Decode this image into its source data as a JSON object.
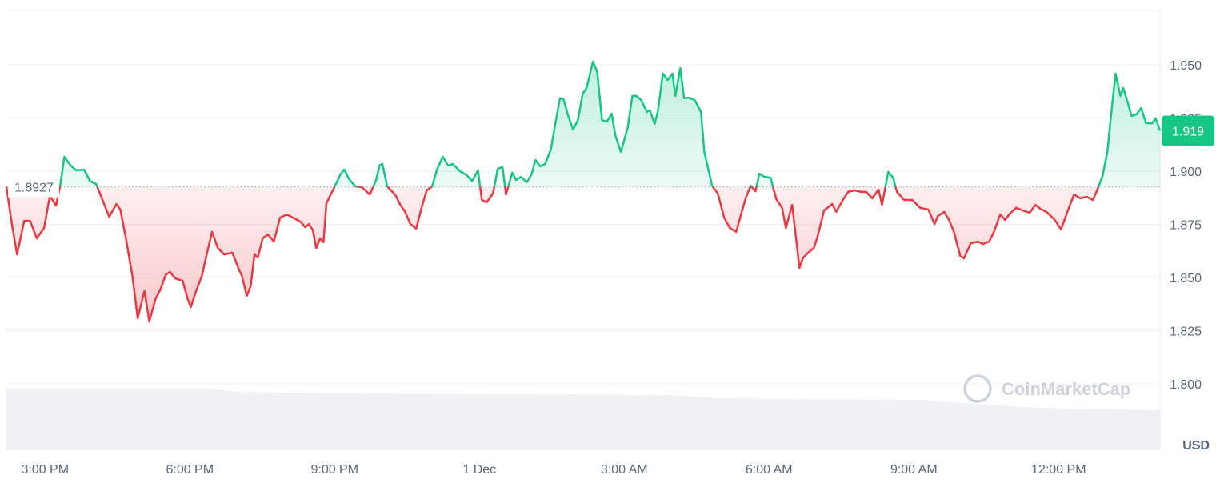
{
  "chart_data": {
    "type": "line",
    "watermark": "CoinMarketCap",
    "y_unit": "USD",
    "reference_value": 1.8927,
    "current_price": 1.919,
    "colors": {
      "up": "#16c784",
      "down": "#ea3943"
    },
    "grid": true,
    "xlim": [
      14.2,
      38.1
    ],
    "ylim": [
      1.7692,
      1.9756
    ],
    "xticks": [
      {
        "value": 15,
        "label": "3:00 PM"
      },
      {
        "value": 18,
        "label": "6:00 PM"
      },
      {
        "value": 21,
        "label": "9:00 PM"
      },
      {
        "value": 24,
        "label": "1 Dec"
      },
      {
        "value": 27,
        "label": "3:00 AM"
      },
      {
        "value": 30,
        "label": "6:00 AM"
      },
      {
        "value": 33,
        "label": "9:00 AM"
      },
      {
        "value": 36,
        "label": "12:00 PM"
      }
    ],
    "yticks": [
      {
        "value": 1.8,
        "label": "1.800"
      },
      1.825,
      {
        "value": 1.85,
        "label": "1.850"
      },
      1.875,
      {
        "value": 1.9,
        "label": "1.900"
      },
      1.925,
      {
        "value": 1.95,
        "label": "1.950"
      }
    ],
    "x": [
      14.2,
      14.3,
      14.42,
      14.57,
      14.69,
      14.83,
      14.98,
      15.1,
      15.23,
      15.32,
      15.4,
      15.53,
      15.65,
      15.81,
      15.93,
      16.06,
      16.19,
      16.33,
      16.48,
      16.56,
      16.67,
      16.81,
      16.92,
      17.06,
      17.16,
      17.29,
      17.39,
      17.5,
      17.59,
      17.69,
      17.85,
      17.95,
      18.02,
      18.13,
      18.25,
      18.35,
      18.46,
      18.58,
      18.71,
      18.88,
      19.01,
      19.08,
      19.18,
      19.26,
      19.34,
      19.41,
      19.51,
      19.62,
      19.74,
      19.87,
      20.01,
      20.14,
      20.29,
      20.39,
      20.47,
      20.55,
      20.62,
      20.7,
      20.77,
      20.83,
      20.98,
      21.12,
      21.2,
      21.3,
      21.43,
      21.56,
      21.73,
      21.86,
      21.93,
      21.99,
      22.09,
      22.26,
      22.36,
      22.46,
      22.57,
      22.69,
      22.81,
      22.91,
      23.02,
      23.12,
      23.24,
      23.35,
      23.45,
      23.6,
      23.72,
      23.85,
      23.97,
      24.05,
      24.15,
      24.28,
      24.38,
      24.48,
      24.55,
      24.68,
      24.76,
      24.86,
      24.98,
      25.08,
      25.16,
      25.26,
      25.36,
      25.48,
      25.58,
      25.67,
      25.74,
      25.84,
      25.94,
      26.04,
      26.14,
      26.22,
      26.3,
      26.35,
      26.44,
      26.54,
      26.64,
      26.74,
      26.82,
      26.93,
      27.07,
      27.17,
      27.25,
      27.35,
      27.47,
      27.53,
      27.63,
      27.7,
      27.8,
      27.9,
      28.0,
      28.06,
      28.16,
      28.24,
      28.33,
      28.46,
      28.59,
      28.66,
      28.82,
      28.94,
      29.07,
      29.19,
      29.32,
      29.42,
      29.52,
      29.62,
      29.72,
      29.8,
      29.9,
      30.03,
      30.15,
      30.27,
      30.35,
      30.48,
      30.63,
      30.71,
      30.81,
      30.93,
      31.01,
      31.14,
      31.31,
      31.39,
      31.53,
      31.64,
      31.77,
      31.91,
      32.01,
      32.14,
      32.27,
      32.34,
      32.47,
      32.57,
      32.65,
      32.8,
      32.97,
      33.13,
      33.3,
      33.43,
      33.5,
      33.63,
      33.73,
      33.83,
      33.96,
      34.04,
      34.18,
      34.33,
      34.43,
      34.56,
      34.66,
      34.79,
      34.89,
      34.99,
      35.12,
      35.25,
      35.4,
      35.52,
      35.64,
      35.75,
      35.92,
      36.05,
      36.18,
      36.32,
      36.45,
      36.58,
      36.71,
      36.81,
      36.91,
      37.01,
      37.11,
      37.18,
      37.28,
      37.34,
      37.44,
      37.51,
      37.61,
      37.71,
      37.81,
      37.94,
      38.01,
      38.1
    ],
    "values": [
      1.893,
      1.8771,
      1.8609,
      1.8767,
      1.8767,
      1.8685,
      1.8733,
      1.8884,
      1.8839,
      1.894,
      1.9068,
      1.9027,
      1.9004,
      1.9008,
      1.8955,
      1.894,
      1.8865,
      1.8786,
      1.8846,
      1.882,
      1.8692,
      1.8508,
      1.8309,
      1.8436,
      1.8293,
      1.8399,
      1.8444,
      1.8512,
      1.8527,
      1.8497,
      1.8485,
      1.8403,
      1.8361,
      1.8436,
      1.8508,
      1.8609,
      1.8715,
      1.8639,
      1.8609,
      1.8617,
      1.8542,
      1.8508,
      1.8414,
      1.8459,
      1.8609,
      1.8594,
      1.8685,
      1.8703,
      1.8669,
      1.8782,
      1.8797,
      1.8782,
      1.8763,
      1.8737,
      1.8752,
      1.8722,
      1.8639,
      1.8685,
      1.8666,
      1.885,
      1.8918,
      1.8985,
      1.9008,
      1.8963,
      1.8929,
      1.8925,
      1.8891,
      1.8959,
      1.9027,
      1.9034,
      1.8929,
      1.8888,
      1.8842,
      1.8809,
      1.8752,
      1.873,
      1.8835,
      1.891,
      1.8929,
      1.9008,
      1.9068,
      1.9027,
      1.9034,
      1.9,
      1.8985,
      1.8955,
      1.9004,
      1.8865,
      1.8854,
      1.8895,
      1.9012,
      1.9019,
      1.8891,
      1.8993,
      1.8959,
      1.8974,
      1.8948,
      1.8985,
      1.9053,
      1.9023,
      1.9034,
      1.9102,
      1.9233,
      1.9343,
      1.9339,
      1.926,
      1.9196,
      1.9241,
      1.9365,
      1.9391,
      1.9467,
      1.9515,
      1.9467,
      1.9241,
      1.9233,
      1.9271,
      1.9166,
      1.9091,
      1.9203,
      1.9354,
      1.9354,
      1.9335,
      1.9279,
      1.9286,
      1.9222,
      1.9286,
      1.9459,
      1.9429,
      1.9459,
      1.9354,
      1.9485,
      1.9343,
      1.9346,
      1.9335,
      1.9279,
      1.9091,
      1.8932,
      1.8895,
      1.8782,
      1.8733,
      1.8715,
      1.8797,
      1.8876,
      1.8932,
      1.8906,
      1.8989,
      1.8974,
      1.897,
      1.8869,
      1.8828,
      1.8733,
      1.8842,
      1.8546,
      1.8594,
      1.8617,
      1.8639,
      1.8696,
      1.8816,
      1.8846,
      1.8809,
      1.8865,
      1.8903,
      1.891,
      1.8903,
      1.8903,
      1.8873,
      1.8914,
      1.8842,
      1.8997,
      1.897,
      1.8903,
      1.8865,
      1.8865,
      1.8828,
      1.882,
      1.8752,
      1.879,
      1.8809,
      1.8771,
      1.8715,
      1.8602,
      1.859,
      1.8662,
      1.8669,
      1.8658,
      1.8669,
      1.8715,
      1.8797,
      1.8771,
      1.8801,
      1.8828,
      1.8816,
      1.8805,
      1.8842,
      1.882,
      1.8809,
      1.8771,
      1.8726,
      1.8809,
      1.8891,
      1.8873,
      1.888,
      1.8865,
      1.8918,
      1.8978,
      1.9091,
      1.9316,
      1.9459,
      1.9354,
      1.9391,
      1.9316,
      1.926,
      1.9267,
      1.9297,
      1.9226,
      1.9226,
      1.9249,
      1.919
    ]
  }
}
